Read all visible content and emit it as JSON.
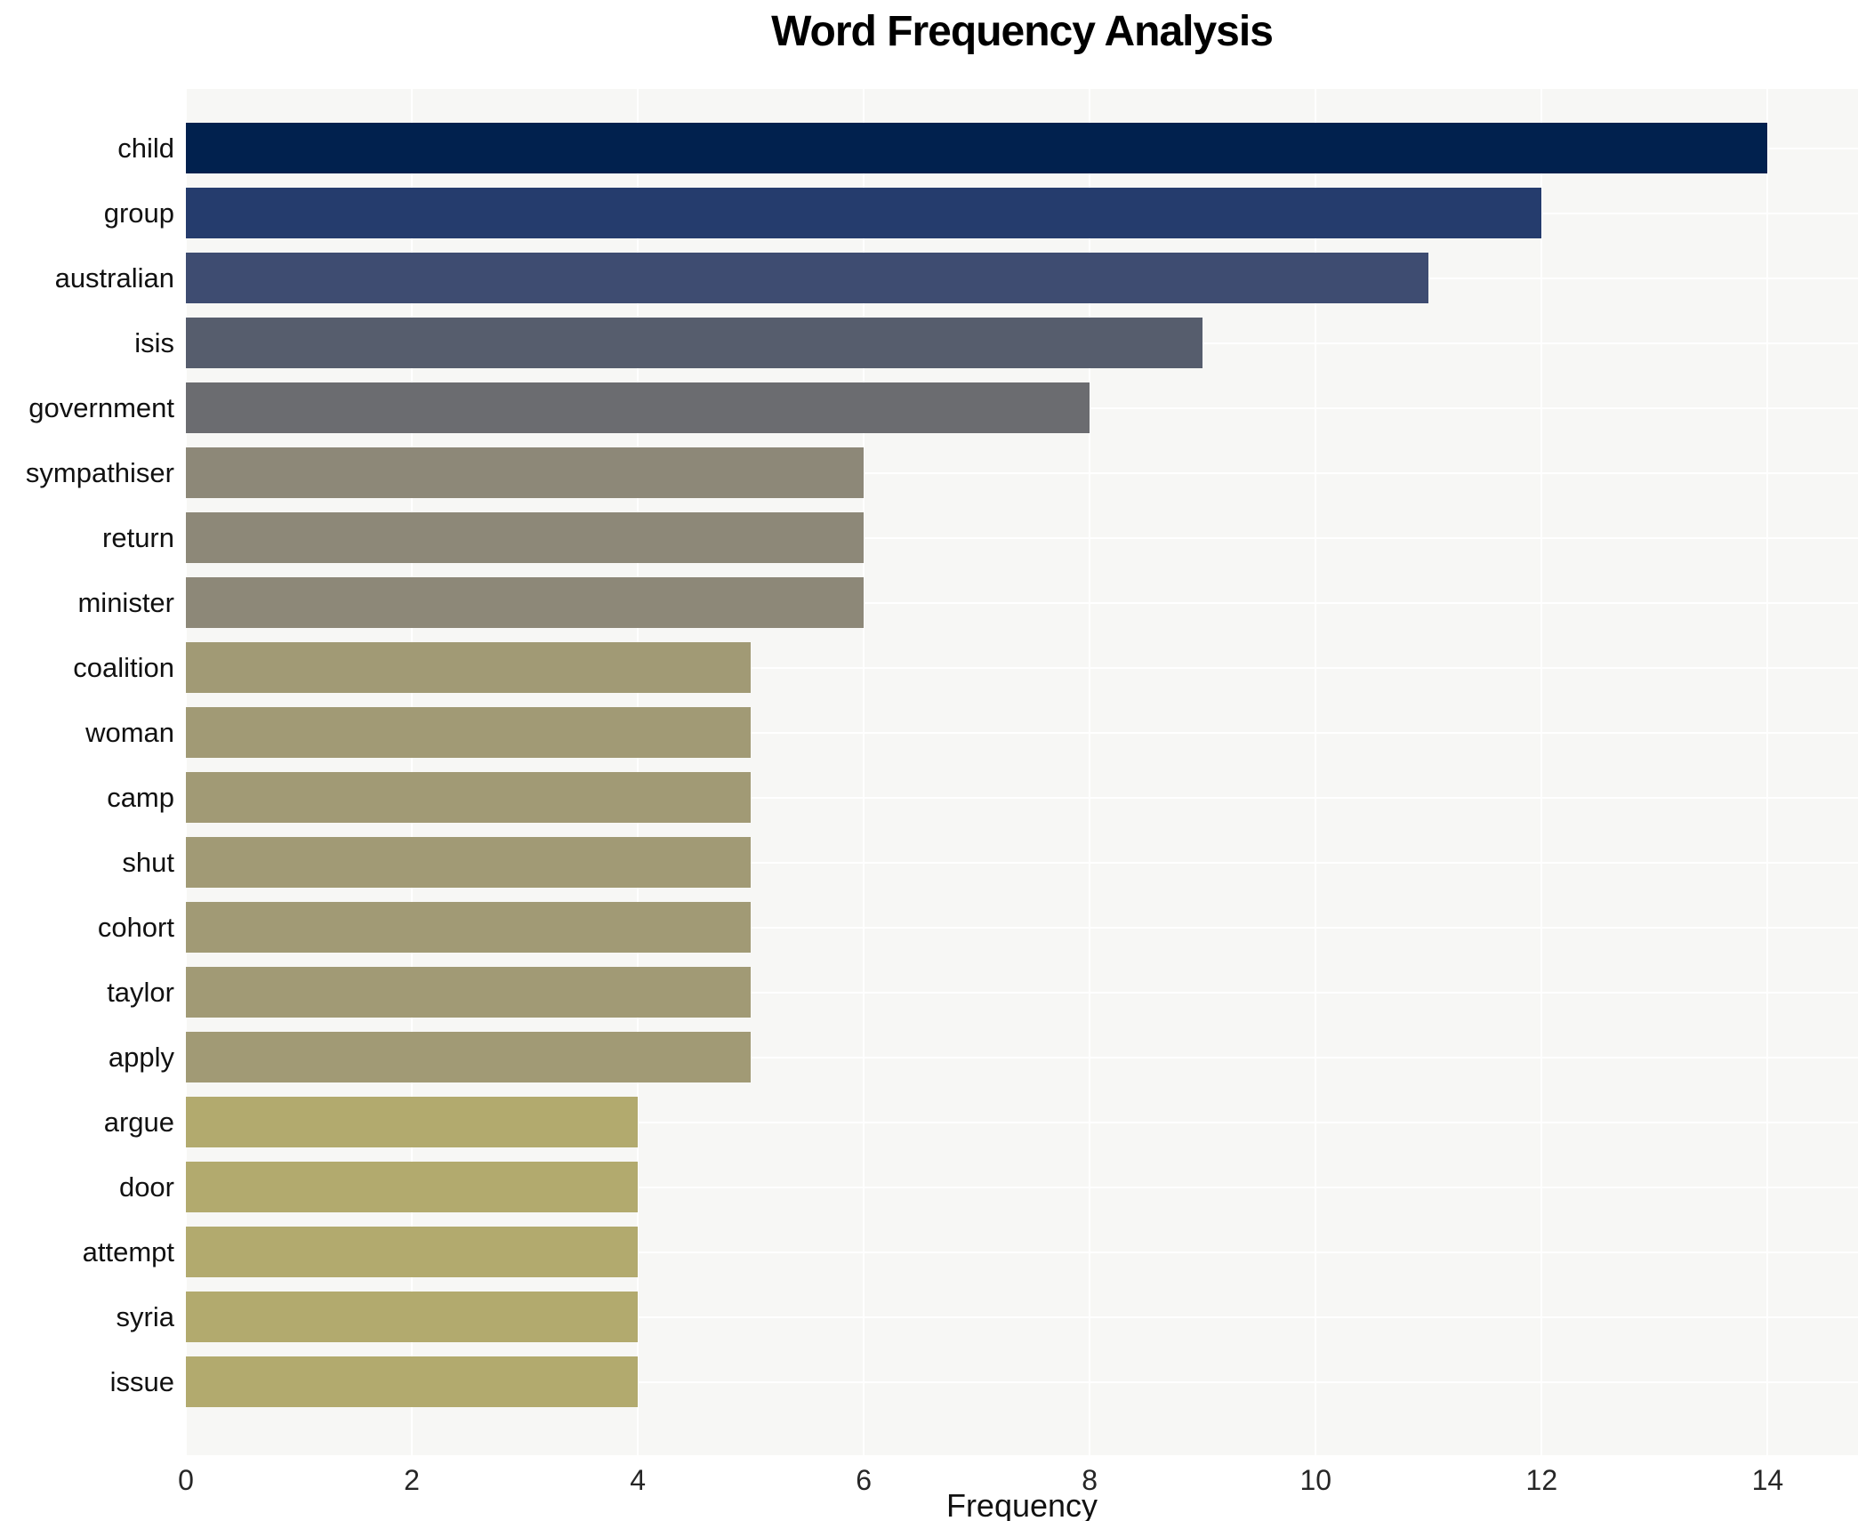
{
  "title": "Word Frequency Analysis",
  "chart_data": {
    "type": "bar",
    "orientation": "horizontal",
    "title": "Word Frequency Analysis",
    "xlabel": "Frequency",
    "ylabel": "",
    "xlim": [
      0,
      14.8
    ],
    "xticks": [
      0,
      2,
      4,
      6,
      8,
      10,
      12,
      14
    ],
    "grid": true,
    "legend": false,
    "categories": [
      "child",
      "group",
      "australian",
      "isis",
      "government",
      "sympathiser",
      "return",
      "minister",
      "coalition",
      "woman",
      "camp",
      "shut",
      "cohort",
      "taylor",
      "apply",
      "argue",
      "door",
      "attempt",
      "syria",
      "issue"
    ],
    "values": [
      14,
      12,
      11,
      9,
      8,
      6,
      6,
      6,
      5,
      5,
      5,
      5,
      5,
      5,
      5,
      4,
      4,
      4,
      4,
      4
    ],
    "bar_colors": [
      "#01214e",
      "#253c6d",
      "#3e4c71",
      "#565d6d",
      "#6b6c70",
      "#8d8878",
      "#8d8878",
      "#8d8878",
      "#a19a75",
      "#a19a75",
      "#a19a75",
      "#a19a75",
      "#a19a75",
      "#a19a75",
      "#a19a75",
      "#b2aa6e",
      "#b2aa6e",
      "#b2aa6e",
      "#b2aa6e",
      "#b2aa6e"
    ]
  },
  "colors": {
    "figure_bg": "#ffffff",
    "axes_bg": "#f7f7f5",
    "grid": "#ffffff",
    "title_text": "#000000",
    "tick_text": "#262626"
  }
}
